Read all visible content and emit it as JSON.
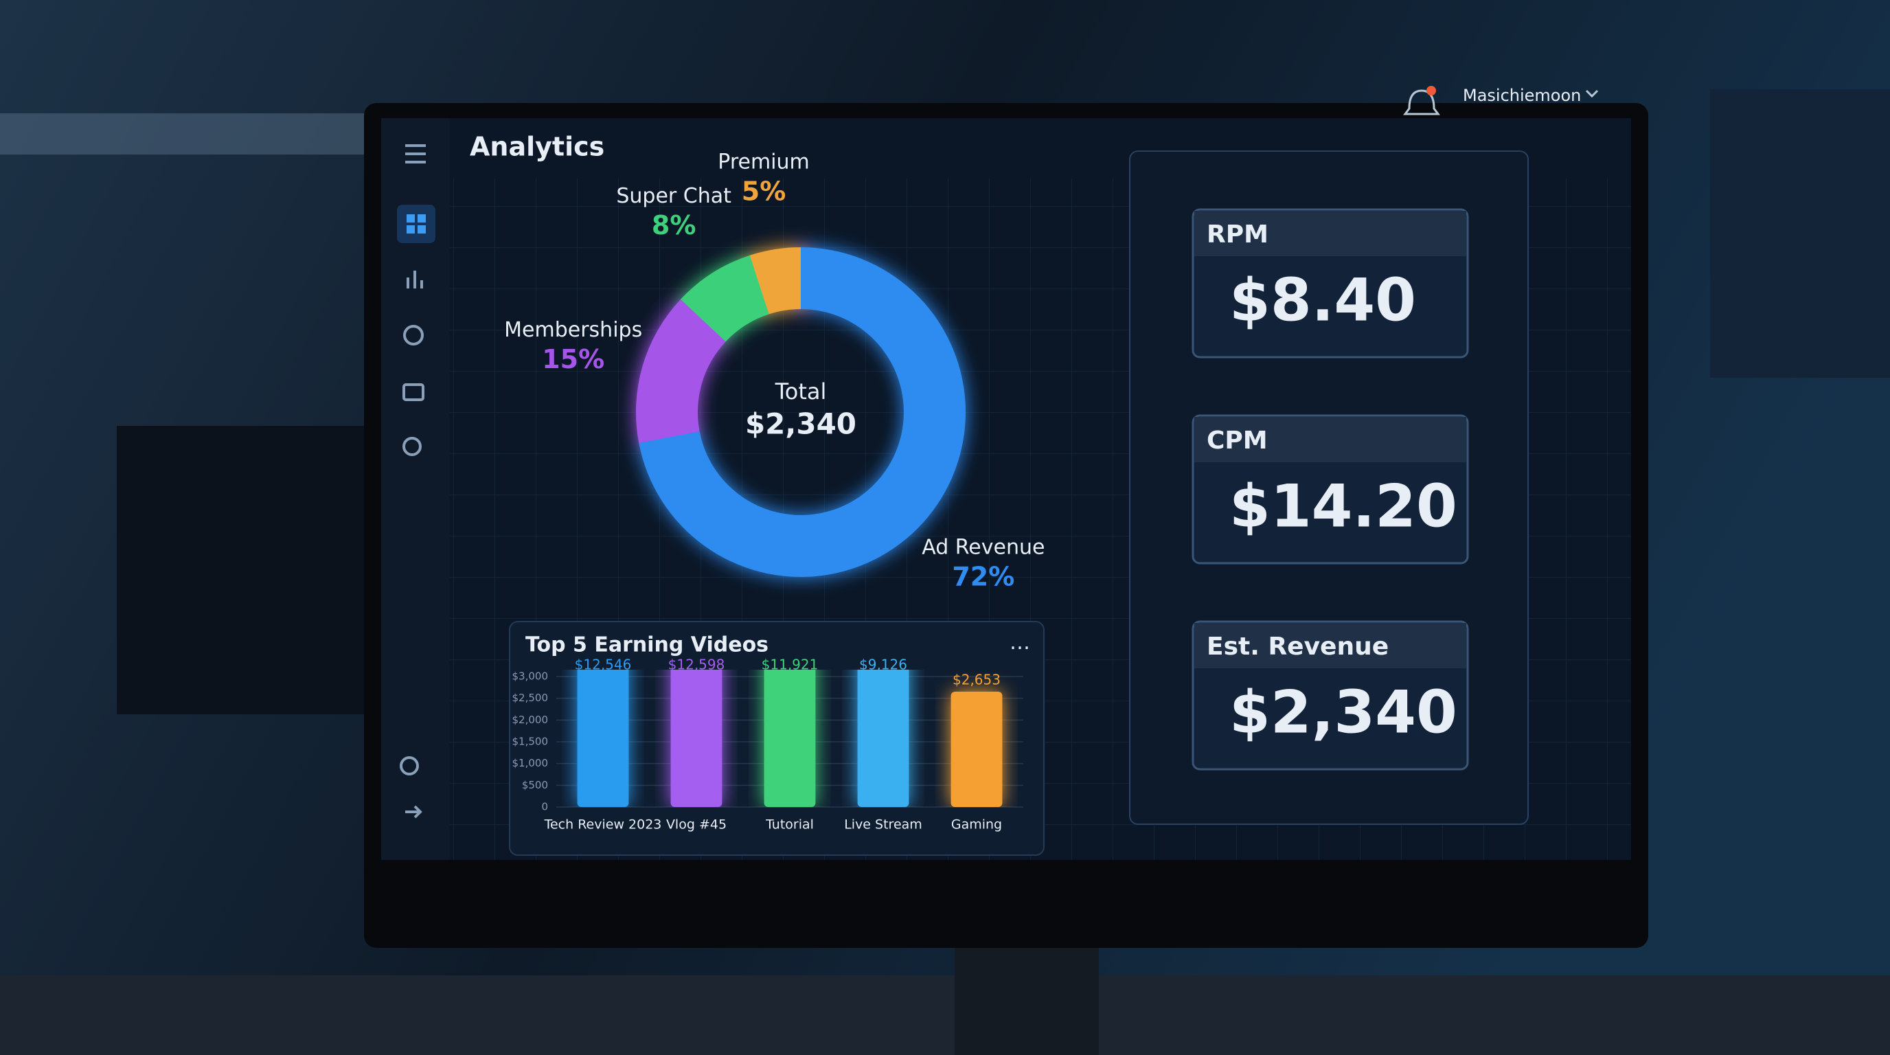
{
  "header": {
    "title": "Analytics",
    "user": "Masichiemoon"
  },
  "chart_data": [
    {
      "type": "pie",
      "categories": [
        "Ad Revenue",
        "Memberships",
        "Super Chat",
        "Premium"
      ],
      "values": [
        72,
        15,
        8,
        5
      ],
      "value_labels": [
        "72%",
        "15%",
        "8%",
        "5%"
      ],
      "colors": [
        "#2f8cf0",
        "#a555e8",
        "#3ed07a",
        "#f0a53a"
      ],
      "center_label": "Total",
      "center_value": "$2,340"
    },
    {
      "type": "bar",
      "title": "Top 5 Earning Videos",
      "categories": [
        "Tech Review 2023",
        "Vlog #45",
        "Tutorial",
        "Live Stream",
        "Gaming"
      ],
      "values": [
        12546,
        12598,
        11921,
        9126,
        2653
      ],
      "value_labels": [
        "$12,546",
        "$12,598",
        "$11,921",
        "$9,126",
        "$2,653"
      ],
      "colors": [
        "#2b9cf0",
        "#a45ef0",
        "#3fd27a",
        "#3ab0f0",
        "#f5a030"
      ],
      "ylim": [
        0,
        3000
      ],
      "yticks": [
        {
          "value": 3000,
          "label": "$3,000"
        },
        {
          "value": 2500,
          "label": "$2,500"
        },
        {
          "value": 2000,
          "label": "$2,000"
        },
        {
          "value": 1500,
          "label": "$1,500"
        },
        {
          "value": 1000,
          "label": "$1,000"
        },
        {
          "value": 500,
          "label": "$500"
        },
        0
      ],
      "grid": true
    }
  ],
  "cards": [
    {
      "label": "RPM",
      "value": "$8.40"
    },
    {
      "label": "CPM",
      "value": "$14.20"
    },
    {
      "label": "Est. Revenue",
      "value": "$2,340"
    }
  ]
}
